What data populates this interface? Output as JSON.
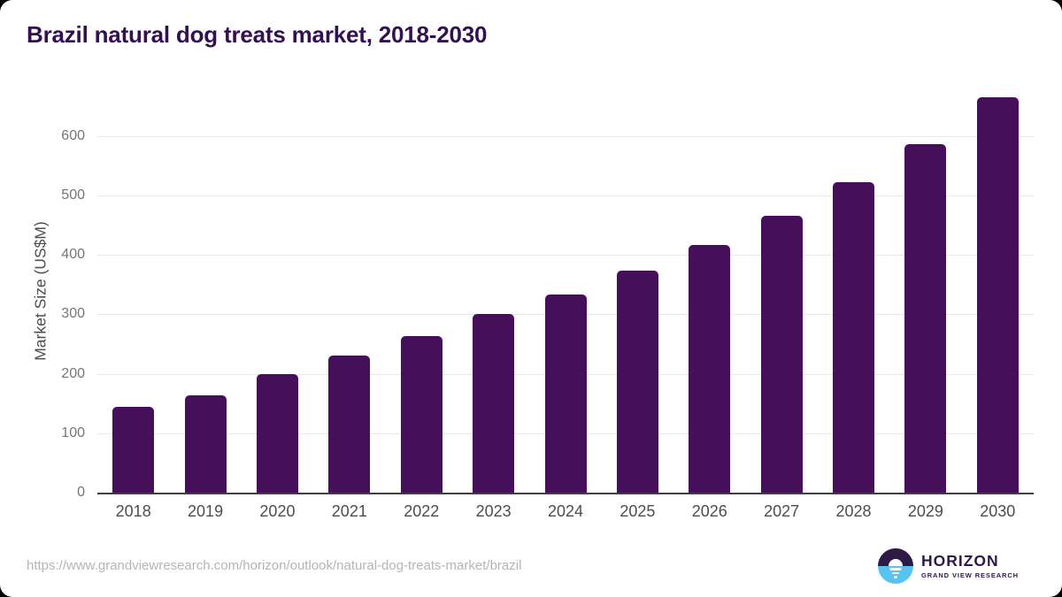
{
  "page": {
    "title": "Brazil natural dog treats market, 2018-2030",
    "source_url": "https://www.grandviewresearch.com/horizon/outlook/natural-dog-treats-market/brazil"
  },
  "branding": {
    "logo_name": "HORIZON",
    "logo_subtitle": "GRAND VIEW RESEARCH",
    "logo_purple": "#2E1A47",
    "logo_blue": "#56C3F0"
  },
  "chart_data": {
    "type": "bar",
    "title": "Brazil natural dog treats market, 2018-2030",
    "categories": [
      "2018",
      "2019",
      "2020",
      "2021",
      "2022",
      "2023",
      "2024",
      "2025",
      "2026",
      "2027",
      "2028",
      "2029",
      "2030"
    ],
    "values": [
      145,
      163,
      200,
      231,
      264,
      300,
      334,
      373,
      417,
      466,
      522,
      587,
      665
    ],
    "xlabel": "",
    "ylabel": "Market Size (US$M)",
    "yticks": [
      0,
      100,
      200,
      300,
      400,
      500,
      600
    ],
    "ylim": [
      0,
      680
    ],
    "bar_color": "#451059",
    "grid": true,
    "gridline_color": "#e9e9e9",
    "legend": false
  }
}
